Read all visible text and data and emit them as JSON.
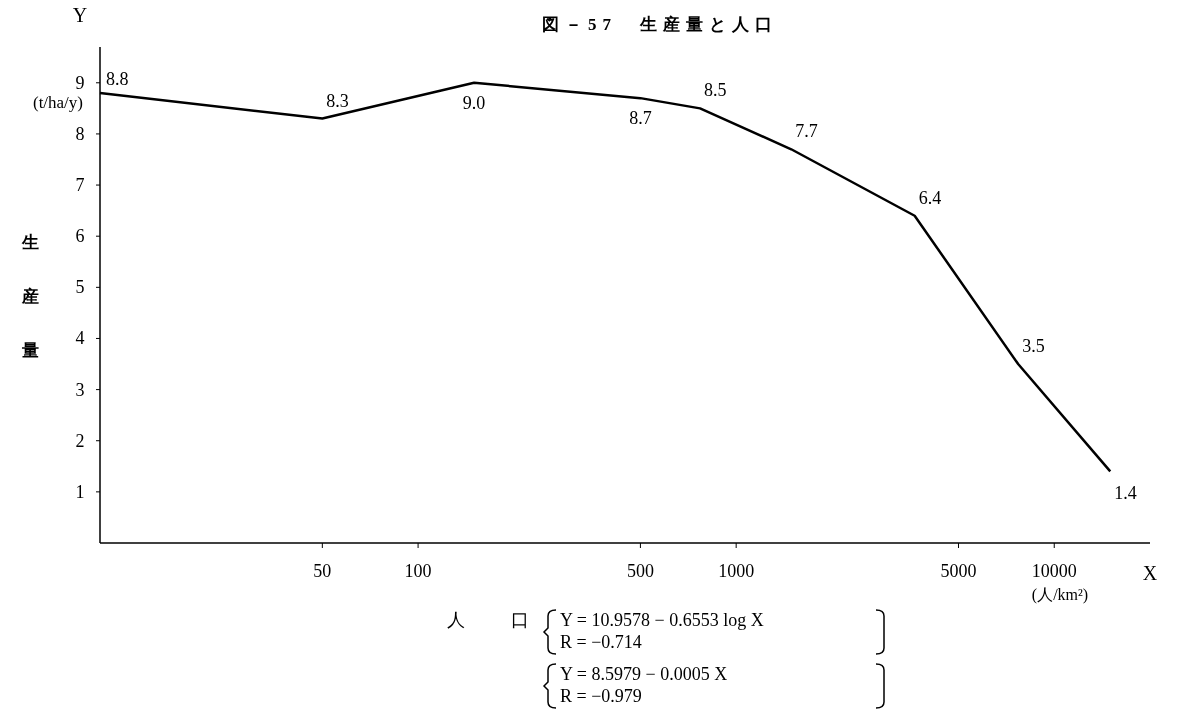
{
  "chart_data": {
    "type": "line",
    "title": "図－57　生産量と人口",
    "xlabel": "人　口",
    "ylabel": "生産量",
    "x": [
      10,
      50,
      150,
      500,
      770,
      1490,
      3640,
      7700,
      15000
    ],
    "values": [
      8.8,
      8.3,
      9.0,
      8.7,
      8.5,
      7.7,
      6.4,
      3.5,
      1.4
    ],
    "color": "#000000",
    "log": "x",
    "xlim": [
      10,
      20000
    ],
    "xticks": [
      50,
      100,
      500,
      1000,
      5000,
      10000
    ],
    "ylim": [
      0,
      9.7
    ],
    "yticks": [
      1,
      2,
      3,
      4,
      5,
      6,
      7,
      8,
      9
    ],
    "value_labels": [
      "8.8",
      "8.3",
      "9.0",
      "8.7",
      "8.5",
      "7.7",
      "6.4",
      "3.5",
      "1.4"
    ],
    "grid": false,
    "marker": "none",
    "line_style": "solid",
    "annotations": [
      "Y",
      "(t/ha/y)",
      "X",
      "(人/km²)",
      "Y = 10.9578 − 0.6553 log X",
      "R = −0.714",
      "Y = 8.5979 − 0.0005 X",
      "R = −0.979"
    ]
  }
}
